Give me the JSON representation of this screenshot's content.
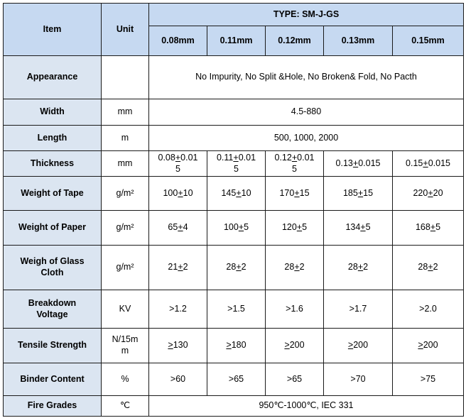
{
  "header": {
    "item": "Item",
    "unit": "Unit",
    "type": "TYPE:  SM-J-GS",
    "thicknesses": [
      "0.08mm",
      "0.11mm",
      "0.12mm",
      "0.13mm",
      "0.15mm"
    ]
  },
  "rows": {
    "appearance": {
      "label": "Appearance",
      "unit": "",
      "value": "No Impurity, No Split &Hole, No Broken& Fold, No Pacth"
    },
    "width": {
      "label": "Width",
      "unit": "mm",
      "value": "4.5-880"
    },
    "length": {
      "label": "Length",
      "unit": "m",
      "value": "500, 1000, 2000"
    },
    "thickness": {
      "label": "Thickness",
      "unit": "mm",
      "values": [
        {
          "a": "0.08",
          "b": "0.01\n5"
        },
        {
          "a": "0.11",
          "b": "0.01\n5"
        },
        {
          "a": "0.12",
          "b": "0.01\n5"
        },
        {
          "a": "0.13",
          "b": "0.015"
        },
        {
          "a": "0.15",
          "b": "0.015"
        }
      ]
    },
    "weight_tape": {
      "label": "Weight of Tape",
      "unit": "g/m²",
      "values": [
        {
          "a": "100",
          "b": "10"
        },
        {
          "a": "145",
          "b": "10"
        },
        {
          "a": "170",
          "b": "15"
        },
        {
          "a": "185",
          "b": "15"
        },
        {
          "a": "220",
          "b": "20"
        }
      ]
    },
    "weight_paper": {
      "label": "Weight of Paper",
      "unit": "g/m²",
      "values": [
        {
          "a": "65",
          "b": "4"
        },
        {
          "a": "100",
          "b": "5"
        },
        {
          "a": "120",
          "b": "5"
        },
        {
          "a": "134",
          "b": "5"
        },
        {
          "a": "168",
          "b": "5"
        }
      ]
    },
    "weight_glass": {
      "label": "Weigh of Glass\nCloth",
      "unit": "g/m²",
      "values": [
        {
          "a": "21",
          "b": "2"
        },
        {
          "a": "28",
          "b": "2"
        },
        {
          "a": "28",
          "b": "2"
        },
        {
          "a": "28",
          "b": "2"
        },
        {
          "a": "28",
          "b": "2"
        }
      ]
    },
    "breakdown": {
      "label": "Breakdown\nVoltage",
      "unit": "KV",
      "values": [
        ">1.2",
        ">1.5",
        ">1.6",
        ">1.7",
        ">2.0"
      ]
    },
    "tensile": {
      "label": "Tensile Strength",
      "unit": "N/15m\nm",
      "values": [
        "130",
        "180",
        "200",
        "200",
        "200"
      ]
    },
    "binder": {
      "label": "Binder Content",
      "unit": "%",
      "values": [
        ">60",
        ">65",
        ">65",
        ">70",
        ">75"
      ]
    },
    "fire": {
      "label": "Fire Grades",
      "unit": "℃",
      "value": "950℃-1000℃, IEC 331"
    }
  }
}
